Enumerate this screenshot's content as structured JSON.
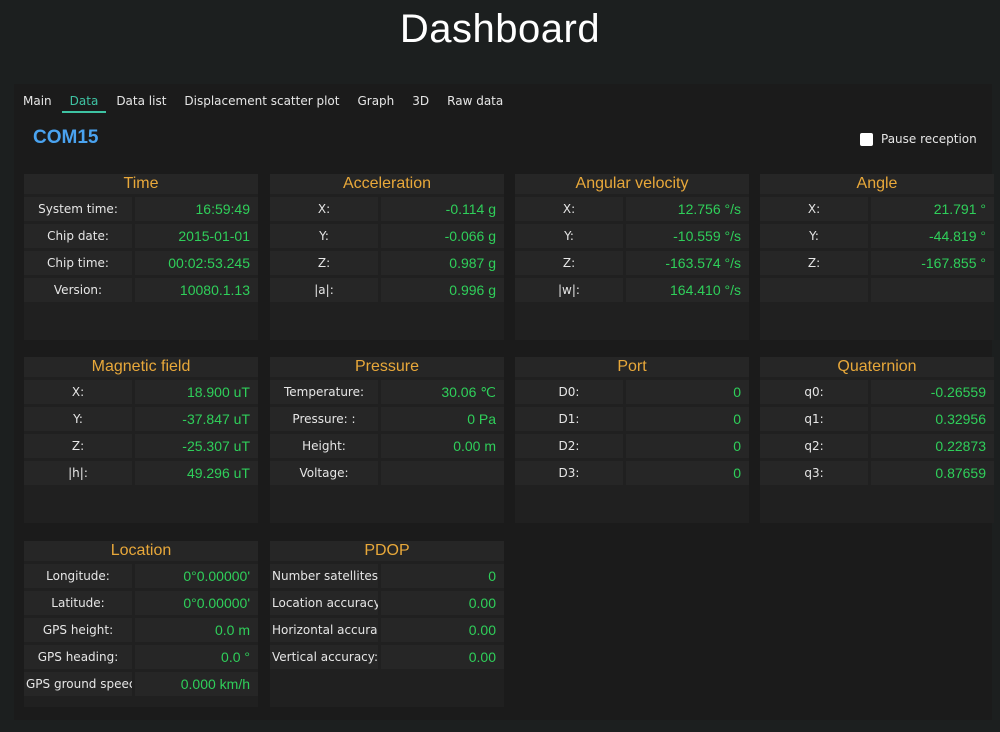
{
  "page": {
    "title": "Dashboard"
  },
  "tabs": [
    "Main",
    "Data",
    "Data list",
    "Displacement scatter plot",
    "Graph",
    "3D",
    "Raw data"
  ],
  "port": "COM15",
  "pause_label": "Pause reception",
  "colors": {
    "accent": "#3ec3a3",
    "title": "#e8a83a",
    "value": "#2fcf5a",
    "port": "#4aa3f0"
  },
  "cards": {
    "time": {
      "title": "Time",
      "rows": [
        {
          "label": "System time:",
          "value": "16:59:49"
        },
        {
          "label": "Chip date:",
          "value": "2015-01-01"
        },
        {
          "label": "Chip time:",
          "value": "00:02:53.245"
        },
        {
          "label": "Version:",
          "value": "10080.1.13"
        }
      ]
    },
    "acceleration": {
      "title": "Acceleration",
      "rows": [
        {
          "label": "X:",
          "value": "-0.114 g"
        },
        {
          "label": "Y:",
          "value": "-0.066 g"
        },
        {
          "label": "Z:",
          "value": "0.987 g"
        },
        {
          "label": "|a|:",
          "value": "0.996 g"
        }
      ]
    },
    "angular_velocity": {
      "title": "Angular velocity",
      "rows": [
        {
          "label": "X:",
          "value": "12.756 °/s"
        },
        {
          "label": "Y:",
          "value": "-10.559 °/s"
        },
        {
          "label": "Z:",
          "value": "-163.574 °/s"
        },
        {
          "label": "|w|:",
          "value": "164.410 °/s"
        }
      ]
    },
    "angle": {
      "title": "Angle",
      "rows": [
        {
          "label": "X:",
          "value": "21.791 °"
        },
        {
          "label": "Y:",
          "value": "-44.819 °"
        },
        {
          "label": "Z:",
          "value": "-167.855 °"
        },
        {
          "label": "",
          "value": ""
        }
      ]
    },
    "magnetic": {
      "title": "Magnetic field",
      "rows": [
        {
          "label": "X:",
          "value": "18.900 uT"
        },
        {
          "label": "Y:",
          "value": "-37.847 uT"
        },
        {
          "label": "Z:",
          "value": "-25.307 uT"
        },
        {
          "label": "|h|:",
          "value": "49.296 uT"
        }
      ]
    },
    "pressure": {
      "title": "Pressure",
      "rows": [
        {
          "label": "Temperature:",
          "value": "30.06 ℃"
        },
        {
          "label": "Pressure: :",
          "value": "0 Pa"
        },
        {
          "label": "Height:",
          "value": "0.00 m"
        },
        {
          "label": "Voltage:",
          "value": ""
        }
      ]
    },
    "port": {
      "title": "Port",
      "rows": [
        {
          "label": "D0:",
          "value": "0"
        },
        {
          "label": "D1:",
          "value": "0"
        },
        {
          "label": "D2:",
          "value": "0"
        },
        {
          "label": "D3:",
          "value": "0"
        }
      ]
    },
    "quaternion": {
      "title": "Quaternion",
      "rows": [
        {
          "label": "q0:",
          "value": "-0.26559"
        },
        {
          "label": "q1:",
          "value": "0.32956"
        },
        {
          "label": "q2:",
          "value": "0.22873"
        },
        {
          "label": "q3:",
          "value": "0.87659"
        }
      ]
    },
    "location": {
      "title": "Location",
      "rows": [
        {
          "label": "Longitude:",
          "value": "0°0.00000'"
        },
        {
          "label": "Latitude:",
          "value": "0°0.00000'"
        },
        {
          "label": "GPS height:",
          "value": "0.0 m"
        },
        {
          "label": "GPS heading:",
          "value": "0.0 °"
        },
        {
          "label": "GPS ground speec",
          "value": "0.000 km/h"
        }
      ]
    },
    "pdop": {
      "title": "PDOP",
      "rows": [
        {
          "label": "Number satellites:",
          "value": "0"
        },
        {
          "label": "Location accuracy:",
          "value": "0.00"
        },
        {
          "label": "Horizontal accurac",
          "value": "0.00"
        },
        {
          "label": "Vertical accuracy:",
          "value": "0.00"
        }
      ]
    }
  }
}
